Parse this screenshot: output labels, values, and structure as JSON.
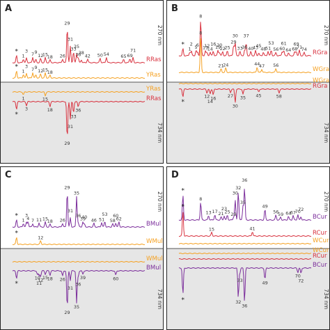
{
  "colors": {
    "red": "#d8303d",
    "orange": "#f5a122",
    "purple": "#7b2d9b",
    "frame": "#222222",
    "shade": "#e6e6e6"
  },
  "chart_data": [
    {
      "type": "line",
      "panel": "A",
      "wavelength_top": "270 nm",
      "wavelength_bottom": "734 nm",
      "series": [
        {
          "name": "RRas",
          "color": "#d8303d",
          "trace": "top",
          "peaks": [
            "*",
            "1",
            "3",
            "7",
            "9",
            "12",
            "15",
            "18",
            "26",
            "29",
            "31",
            "33",
            "35",
            "36",
            "38",
            "42",
            "50",
            "54",
            "65",
            "69",
            "71"
          ]
        },
        {
          "name": "YRas",
          "color": "#f5a122",
          "trace": "top",
          "peaks": [
            "*",
            "1",
            "3",
            "7",
            "9",
            "12",
            "15",
            "18"
          ]
        },
        {
          "name": "YRas",
          "color": "#f5a122",
          "trace": "bottom",
          "peaks": [
            "1",
            "15"
          ]
        },
        {
          "name": "RRas",
          "color": "#d8303d",
          "trace": "bottom",
          "peaks": [
            "*",
            "3",
            "18",
            "29",
            "31",
            "33",
            "36"
          ]
        }
      ]
    },
    {
      "type": "line",
      "panel": "B",
      "wavelength_top": "270 nm",
      "wavelength_bottom": "734 nm",
      "series": [
        {
          "name": "RGra",
          "color": "#d8303d",
          "trace": "top",
          "peaks": [
            "*",
            "1",
            "2",
            "5",
            "6",
            "8",
            "11",
            "12",
            "14",
            "16",
            "19",
            "20",
            "22",
            "25",
            "29",
            "30",
            "33",
            "36",
            "37",
            "40",
            "43",
            "45",
            "48",
            "51",
            "53",
            "56",
            "60",
            "61",
            "64",
            "68",
            "69",
            "71",
            "74"
          ]
        },
        {
          "name": "WGra",
          "color": "#f5a122",
          "trace": "top",
          "peaks": [
            "8",
            "21",
            "24",
            "44",
            "47",
            "56"
          ]
        },
        {
          "name": "WGra",
          "color": "#f5a122",
          "trace": "bottom",
          "peaks": []
        },
        {
          "name": "RGra",
          "color": "#d8303d",
          "trace": "bottom",
          "peaks": [
            "*",
            "12",
            "14",
            "16",
            "27",
            "30",
            "35",
            "45",
            "58"
          ]
        }
      ]
    },
    {
      "type": "line",
      "panel": "C",
      "wavelength_top": "270 nm",
      "wavelength_bottom": "734 nm",
      "series": [
        {
          "name": "BMul",
          "color": "#7b2d9b",
          "trace": "top",
          "peaks": [
            "*",
            "1",
            "3",
            "4",
            "7",
            "11",
            "15",
            "18",
            "26",
            "29",
            "31",
            "35",
            "36",
            "39",
            "40",
            "46",
            "51",
            "53",
            "58",
            "60",
            "62"
          ]
        },
        {
          "name": "WMul",
          "color": "#f5a122",
          "trace": "top",
          "peaks": [
            "*",
            "12"
          ]
        },
        {
          "name": "WMul",
          "color": "#f5a122",
          "trace": "bottom",
          "peaks": []
        },
        {
          "name": "BMul",
          "color": "#7b2d9b",
          "trace": "bottom",
          "peaks": [
            "*",
            "10",
            "11",
            "12",
            "15",
            "18",
            "26",
            "29",
            "31",
            "35",
            "36",
            "39",
            "60"
          ]
        }
      ]
    },
    {
      "type": "line",
      "panel": "D",
      "wavelength_top": "270 nm",
      "wavelength_bottom": "734 nm",
      "series": [
        {
          "name": "BCur",
          "color": "#7b2d9b",
          "trace": "top",
          "peaks": [
            "*",
            "8",
            "13",
            "17",
            "21",
            "23",
            "25",
            "29",
            "30",
            "32",
            "35",
            "36",
            "49",
            "56",
            "59",
            "64",
            "67",
            "70",
            "72"
          ]
        },
        {
          "name": "RCur",
          "color": "#d8303d",
          "trace": "top",
          "peaks": [
            "*",
            "15",
            "41"
          ]
        },
        {
          "name": "WCur",
          "color": "#f5a122",
          "trace": "top",
          "peaks": []
        },
        {
          "name": "WCur",
          "color": "#f5a122",
          "trace": "bottom",
          "peaks": []
        },
        {
          "name": "RCur",
          "color": "#d8303d",
          "trace": "bottom",
          "peaks": []
        },
        {
          "name": "BCur",
          "color": "#7b2d9b",
          "trace": "bottom",
          "peaks": [
            "*",
            "32",
            "33",
            "36",
            "49",
            "70",
            "72"
          ]
        }
      ]
    }
  ]
}
